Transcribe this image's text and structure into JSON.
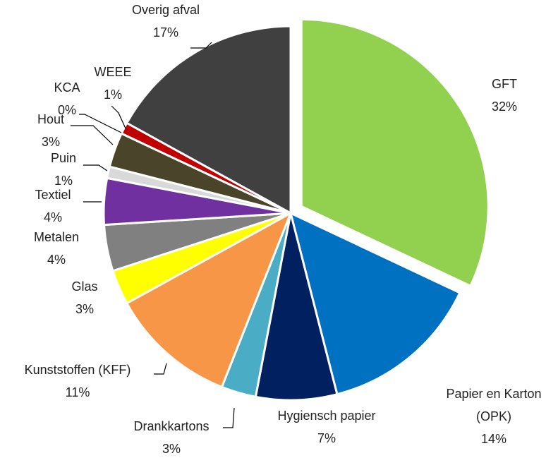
{
  "chart_data": {
    "type": "pie",
    "categories": [
      "GFT",
      "Papier en Karton (OPK)",
      "Hygiensch papier",
      "Drankkartons",
      "Kunststoffen (KFF)",
      "Glas",
      "Metalen",
      "Textiel",
      "Puin",
      "Hout",
      "KCA",
      "WEEE",
      "Overig afval"
    ],
    "values": [
      32,
      14,
      7,
      3,
      11,
      3,
      4,
      4,
      1,
      3,
      0,
      1,
      17
    ],
    "value_labels": [
      "32%",
      "14%",
      "7%",
      "3%",
      "11%",
      "3%",
      "4%",
      "4%",
      "1%",
      "3%",
      "0%",
      "1%",
      "17%"
    ],
    "colors": [
      "#92d050",
      "#0070c0",
      "#002060",
      "#4bacc6",
      "#f79646",
      "#ffff00",
      "#808080",
      "#7030a0",
      "#d9d9d9",
      "#4a452a",
      "#bfbfbf",
      "#c00000",
      "#404040"
    ],
    "exploded": [
      "GFT"
    ]
  }
}
